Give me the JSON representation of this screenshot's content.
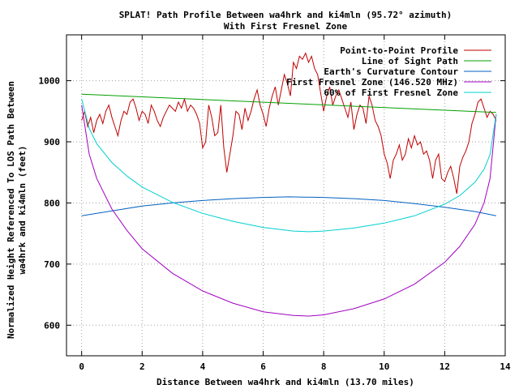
{
  "chart_data": {
    "type": "line",
    "title": "SPLAT! Path Profile Between wa4hrk and ki4mln (95.72° azimuth)",
    "subtitle": "With First Fresnel Zone",
    "xlabel": "Distance Between wa4hrk and ki4mln (13.70 miles)",
    "ylabel_line1": "Normalized Height Referenced To LOS Path Between",
    "ylabel_line2": "wa4hrk and ki4mln (feet)",
    "xlim": [
      -0.5,
      14
    ],
    "ylim": [
      550,
      1075
    ],
    "x_ticks": [
      0,
      2,
      4,
      6,
      8,
      10,
      12,
      14
    ],
    "y_ticks": [
      600,
      700,
      800,
      900,
      1000
    ],
    "grid": true,
    "legend_position": "top-right",
    "path_length_miles": 13.7,
    "series": [
      {
        "name": "Point-to-Point Profile",
        "color": "#c00000",
        "x": [
          0,
          0.1,
          0.2,
          0.3,
          0.4,
          0.5,
          0.6,
          0.7,
          0.8,
          0.9,
          1.0,
          1.1,
          1.2,
          1.3,
          1.4,
          1.5,
          1.6,
          1.7,
          1.8,
          1.9,
          2.0,
          2.1,
          2.2,
          2.3,
          2.4,
          2.5,
          2.6,
          2.7,
          2.8,
          2.9,
          3.0,
          3.1,
          3.2,
          3.3,
          3.4,
          3.5,
          3.6,
          3.7,
          3.8,
          3.9,
          4.0,
          4.1,
          4.2,
          4.3,
          4.4,
          4.5,
          4.6,
          4.7,
          4.8,
          4.9,
          5.0,
          5.1,
          5.2,
          5.3,
          5.4,
          5.5,
          5.6,
          5.7,
          5.8,
          5.9,
          6.0,
          6.1,
          6.2,
          6.3,
          6.4,
          6.5,
          6.6,
          6.7,
          6.8,
          6.9,
          7.0,
          7.1,
          7.2,
          7.3,
          7.4,
          7.5,
          7.6,
          7.7,
          7.8,
          7.9,
          8.0,
          8.1,
          8.2,
          8.3,
          8.4,
          8.5,
          8.6,
          8.7,
          8.8,
          8.9,
          9.0,
          9.1,
          9.2,
          9.3,
          9.4,
          9.5,
          9.6,
          9.7,
          9.8,
          9.9,
          10.0,
          10.1,
          10.2,
          10.3,
          10.4,
          10.5,
          10.6,
          10.7,
          10.8,
          10.9,
          11.0,
          11.1,
          11.2,
          11.3,
          11.4,
          11.5,
          11.6,
          11.7,
          11.8,
          11.9,
          12.0,
          12.1,
          12.2,
          12.3,
          12.4,
          12.5,
          12.6,
          12.7,
          12.8,
          12.9,
          13.0,
          13.1,
          13.2,
          13.3,
          13.4,
          13.5,
          13.6,
          13.7
        ],
        "y": [
          935,
          950,
          925,
          940,
          915,
          935,
          945,
          930,
          950,
          960,
          940,
          925,
          910,
          935,
          950,
          945,
          965,
          970,
          955,
          935,
          950,
          945,
          930,
          960,
          950,
          935,
          925,
          940,
          950,
          960,
          955,
          950,
          965,
          955,
          970,
          950,
          960,
          955,
          945,
          930,
          890,
          900,
          960,
          940,
          910,
          915,
          960,
          890,
          850,
          880,
          910,
          950,
          945,
          920,
          955,
          935,
          950,
          970,
          985,
          960,
          945,
          925,
          955,
          975,
          990,
          960,
          985,
          1010,
          995,
          975,
          1030,
          1020,
          1040,
          1035,
          1045,
          1030,
          1040,
          1020,
          1010,
          980,
          950,
          975,
          990,
          960,
          975,
          985,
          970,
          955,
          940,
          965,
          920,
          945,
          960,
          955,
          930,
          975,
          960,
          935,
          925,
          910,
          880,
          865,
          840,
          870,
          880,
          895,
          870,
          880,
          905,
          890,
          910,
          895,
          900,
          880,
          885,
          870,
          840,
          870,
          880,
          840,
          835,
          850,
          860,
          840,
          815,
          860,
          875,
          885,
          900,
          930,
          945,
          965,
          970,
          955,
          940,
          950,
          945,
          935
        ]
      },
      {
        "name": "Line of Sight Path",
        "color": "#00a000",
        "x": [
          0,
          13.7
        ],
        "y": [
          978,
          948
        ]
      },
      {
        "name": "Earth's Curvature Contour",
        "color": "#0060c0",
        "x": [
          0,
          1,
          2,
          3,
          4,
          5,
          6,
          6.85,
          8,
          9,
          10,
          11,
          12,
          13,
          13.7
        ],
        "y": [
          779,
          787,
          795,
          800,
          804,
          807,
          809,
          810,
          809,
          807,
          804,
          799,
          793,
          786,
          779
        ]
      },
      {
        "name": "First Fresnel Zone (146.520 MHz)",
        "color": "#a000c0",
        "x": [
          0,
          0.25,
          0.5,
          1,
          1.5,
          2,
          3,
          4,
          5,
          6,
          7,
          7.5,
          8,
          9,
          10,
          11,
          12,
          12.5,
          13,
          13.3,
          13.5,
          13.7
        ],
        "y": [
          960,
          880,
          840,
          790,
          755,
          725,
          685,
          656,
          636,
          622,
          616,
          615,
          617,
          627,
          643,
          667,
          703,
          729,
          765,
          800,
          840,
          945
        ]
      },
      {
        "name": "60% of First Fresnel Zone",
        "color": "#00d0d0",
        "x": [
          0,
          0.25,
          0.5,
          1,
          1.5,
          2,
          3,
          4,
          5,
          6,
          7,
          7.5,
          8,
          9,
          10,
          11,
          12,
          12.5,
          13,
          13.3,
          13.5,
          13.7
        ],
        "y": [
          970,
          922,
          897,
          866,
          844,
          826,
          801,
          783,
          770,
          760,
          754,
          753,
          754,
          759,
          767,
          779,
          798,
          812,
          834,
          855,
          879,
          945
        ]
      }
    ]
  }
}
